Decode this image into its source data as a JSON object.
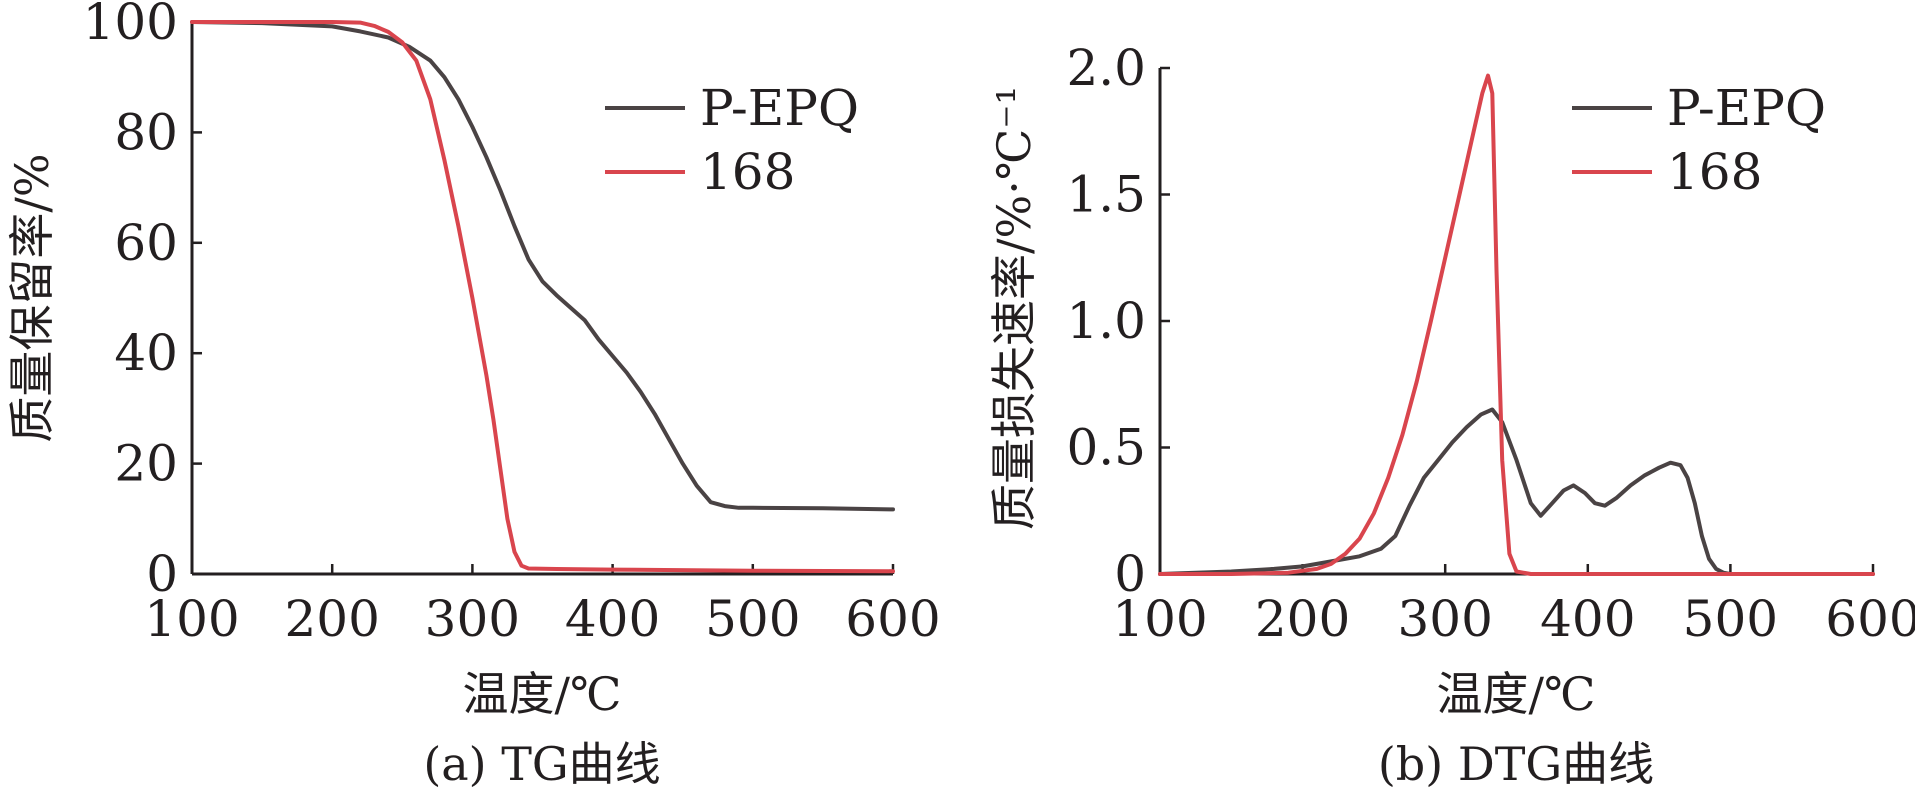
{
  "colors": {
    "P-EPQ": "#4a4344",
    "168": "#d9454d"
  },
  "chart_data": [
    {
      "type": "line",
      "caption": "(a) TG曲线",
      "xlabel": "温度/℃",
      "ylabel": "质量保留率/%",
      "xlim": [
        100,
        600
      ],
      "ylim": [
        0,
        100
      ],
      "xticks": [
        100,
        200,
        300,
        400,
        500,
        600
      ],
      "yticks": [
        0,
        20,
        40,
        60,
        80,
        100
      ],
      "xtick_labels": [
        "100",
        "200",
        "300",
        "400",
        "500",
        "600"
      ],
      "ytick_labels": [
        "0",
        "20",
        "40",
        "60",
        "80",
        "100"
      ],
      "legend_position": "top-right",
      "series": [
        {
          "name": "P-EPQ",
          "color": "#4a4344",
          "x": [
            100,
            150,
            200,
            220,
            240,
            255,
            270,
            280,
            290,
            300,
            310,
            320,
            330,
            340,
            350,
            360,
            380,
            390,
            400,
            410,
            420,
            430,
            440,
            450,
            460,
            470,
            480,
            490,
            500,
            550,
            600
          ],
          "y": [
            100,
            99.8,
            99.2,
            98.3,
            97.2,
            95.5,
            93,
            90,
            86,
            81,
            75.5,
            69.5,
            63,
            57,
            53,
            50.5,
            46,
            42.5,
            39.5,
            36.5,
            33,
            29,
            24.5,
            20,
            16,
            13,
            12.3,
            12,
            12,
            11.9,
            11.7
          ]
        },
        {
          "name": "168",
          "color": "#d9454d",
          "x": [
            100,
            150,
            200,
            220,
            230,
            240,
            250,
            260,
            270,
            280,
            290,
            300,
            310,
            315,
            320,
            325,
            330,
            335,
            340,
            360,
            400,
            500,
            600
          ],
          "y": [
            100,
            100,
            100,
            99.9,
            99.3,
            98.2,
            96.3,
            93,
            86,
            75,
            63,
            50,
            36,
            28,
            19,
            10,
            4,
            1.5,
            1,
            0.9,
            0.8,
            0.6,
            0.5
          ]
        }
      ]
    },
    {
      "type": "line",
      "caption": "(b) DTG曲线",
      "xlabel": "温度/℃",
      "ylabel": "质量损失速率/%·℃⁻¹",
      "xlim": [
        100,
        600
      ],
      "ylim": [
        0,
        2.0
      ],
      "xticks": [
        100,
        200,
        300,
        400,
        500,
        600
      ],
      "yticks": [
        0,
        0.5,
        1.0,
        1.5,
        2.0
      ],
      "xtick_labels": [
        "100",
        "200",
        "300",
        "400",
        "500",
        "600"
      ],
      "ytick_labels": [
        "0",
        "0.5",
        "1.0",
        "1.5",
        "2.0"
      ],
      "legend_position": "top-right",
      "series": [
        {
          "name": "P-EPQ",
          "color": "#4a4344",
          "x": [
            100,
            150,
            180,
            200,
            220,
            240,
            255,
            265,
            275,
            285,
            295,
            305,
            315,
            325,
            333,
            340,
            350,
            360,
            367,
            375,
            383,
            390,
            398,
            405,
            412,
            420,
            430,
            440,
            450,
            458,
            465,
            470,
            475,
            480,
            485,
            490,
            495,
            500,
            550,
            600
          ],
          "y": [
            0,
            0.01,
            0.02,
            0.03,
            0.05,
            0.07,
            0.1,
            0.15,
            0.27,
            0.38,
            0.45,
            0.52,
            0.58,
            0.63,
            0.65,
            0.6,
            0.45,
            0.28,
            0.23,
            0.28,
            0.33,
            0.35,
            0.32,
            0.28,
            0.27,
            0.3,
            0.35,
            0.39,
            0.42,
            0.44,
            0.43,
            0.38,
            0.28,
            0.15,
            0.06,
            0.02,
            0.005,
            0,
            0,
            0
          ]
        },
        {
          "name": "168",
          "color": "#d9454d",
          "x": [
            100,
            150,
            190,
            210,
            220,
            230,
            240,
            250,
            260,
            270,
            280,
            290,
            300,
            310,
            320,
            326,
            330,
            333,
            336,
            340,
            345,
            350,
            360,
            400,
            500,
            600
          ],
          "y": [
            0,
            0,
            0.005,
            0.02,
            0.04,
            0.08,
            0.14,
            0.24,
            0.38,
            0.55,
            0.76,
            1.0,
            1.25,
            1.5,
            1.75,
            1.9,
            1.97,
            1.9,
            1.2,
            0.45,
            0.08,
            0.01,
            0,
            0,
            0,
            0
          ]
        }
      ]
    }
  ]
}
